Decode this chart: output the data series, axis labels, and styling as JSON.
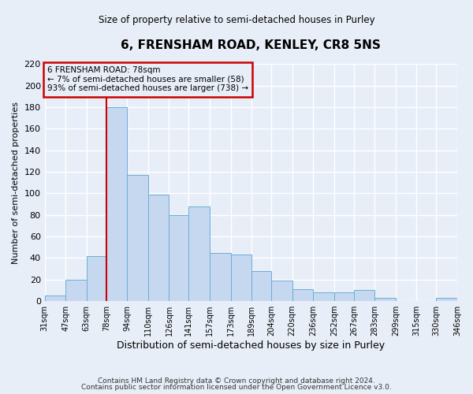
{
  "title": "6, FRENSHAM ROAD, KENLEY, CR8 5NS",
  "subtitle": "Size of property relative to semi-detached houses in Purley",
  "xlabel": "Distribution of semi-detached houses by size in Purley",
  "ylabel": "Number of semi-detached properties",
  "footer_line1": "Contains HM Land Registry data © Crown copyright and database right 2024.",
  "footer_line2": "Contains public sector information licensed under the Open Government Licence v3.0.",
  "bin_labels": [
    "31sqm",
    "47sqm",
    "63sqm",
    "78sqm",
    "94sqm",
    "110sqm",
    "126sqm",
    "141sqm",
    "157sqm",
    "173sqm",
    "189sqm",
    "204sqm",
    "220sqm",
    "236sqm",
    "252sqm",
    "267sqm",
    "283sqm",
    "299sqm",
    "315sqm",
    "330sqm",
    "346sqm"
  ],
  "bin_edges": [
    31,
    47,
    63,
    78,
    94,
    110,
    126,
    141,
    157,
    173,
    189,
    204,
    220,
    236,
    252,
    267,
    283,
    299,
    315,
    330,
    346
  ],
  "bar_heights": [
    5,
    20,
    42,
    180,
    117,
    99,
    80,
    88,
    45,
    43,
    28,
    19,
    11,
    8,
    8,
    10,
    3,
    0,
    0,
    3
  ],
  "bar_color": "#c5d8f0",
  "bar_edge_color": "#6baed6",
  "marker_value": 78,
  "marker_color": "#cc0000",
  "annotation_title": "6 FRENSHAM ROAD: 78sqm",
  "annotation_line1": "← 7% of semi-detached houses are smaller (58)",
  "annotation_line2": "93% of semi-detached houses are larger (738) →",
  "annotation_box_color": "#cc0000",
  "ylim": [
    0,
    220
  ],
  "yticks": [
    0,
    20,
    40,
    60,
    80,
    100,
    120,
    140,
    160,
    180,
    200,
    220
  ],
  "background_color": "#e8eef8",
  "grid_color": "#ffffff"
}
